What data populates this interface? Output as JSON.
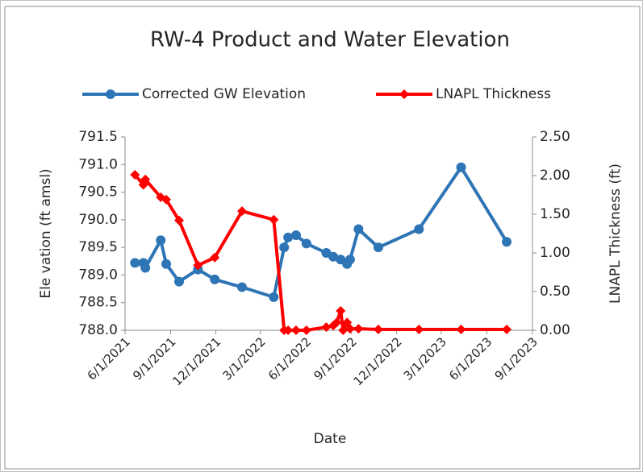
{
  "chart_data": {
    "type": "line",
    "title": "RW-4 Product and Water Elevation",
    "xlabel": "Date",
    "ylabel": "Ele vation (ft amsl)",
    "y2label": "LNAPL Thickness (ft)",
    "xlim": [
      "2021-06-01",
      "2023-09-01"
    ],
    "xticks": [
      {
        "value": "2021-06-01",
        "label": "6/1/2021"
      },
      {
        "value": "2021-09-01",
        "label": "9/1/2021"
      },
      {
        "value": "2021-12-01",
        "label": "12/1/2021"
      },
      {
        "value": "2022-03-01",
        "label": "3/1/2022"
      },
      {
        "value": "2022-06-01",
        "label": "6/1/2022"
      },
      {
        "value": "2022-09-01",
        "label": "9/1/2022"
      },
      {
        "value": "2022-12-01",
        "label": "12/1/2022"
      },
      {
        "value": "2023-03-01",
        "label": "3/1/2023"
      },
      {
        "value": "2023-06-01",
        "label": "6/1/2023"
      },
      {
        "value": "2023-09-01",
        "label": "9/1/2023"
      }
    ],
    "ylim": [
      788.0,
      791.5
    ],
    "yticks": [
      {
        "value": 788,
        "label": "788.0"
      },
      788.5,
      {
        "value": 789,
        "label": "789.0"
      },
      789.5,
      {
        "value": 790,
        "label": "790.0"
      },
      790.5,
      {
        "value": 791,
        "label": "791.0"
      },
      791.5
    ],
    "y2lim": [
      0,
      2.5
    ],
    "y2ticks": [
      {
        "value": 0,
        "label": "0.00"
      },
      {
        "value": 0.5,
        "label": "0.50"
      },
      {
        "value": 1,
        "label": "1.00"
      },
      {
        "value": 1.5,
        "label": "1.50"
      },
      {
        "value": 2,
        "label": "2.00"
      },
      {
        "value": 2.5,
        "label": "2.50"
      }
    ],
    "legend": "top",
    "series": [
      {
        "name": "Corrected GW Elevation",
        "color": "#2e75b6",
        "marker": "circle",
        "x": [
          "2021-06-21",
          "2021-07-08",
          "2021-07-12",
          "2021-08-12",
          "2021-08-23",
          "2021-09-18",
          "2021-10-26",
          "2021-11-29",
          "2022-01-23",
          "2022-03-28",
          "2022-04-18",
          "2022-04-26",
          "2022-05-12",
          "2022-06-02",
          "2022-07-12",
          "2022-07-26",
          "2022-08-10",
          "2022-08-23",
          "2022-08-29",
          "2022-09-15",
          "2022-10-25",
          "2023-01-15",
          "2023-04-10",
          "2023-07-11"
        ],
        "values": [
          789.22,
          789.22,
          789.13,
          789.63,
          789.2,
          788.88,
          789.1,
          788.92,
          788.78,
          788.6,
          789.5,
          789.68,
          789.72,
          789.57,
          789.4,
          789.33,
          789.28,
          789.2,
          789.28,
          789.83,
          789.5,
          789.83,
          790.95,
          789.6
        ]
      },
      {
        "name": "LNAPL Thickness",
        "color": "#ff0000",
        "marker": "diamond",
        "axis": "y2",
        "x": [
          "2021-06-21",
          "2021-07-08",
          "2021-07-12",
          "2021-08-12",
          "2021-08-23",
          "2021-09-18",
          "2021-10-26",
          "2021-11-29",
          "2022-01-23",
          "2022-03-28",
          "2022-04-18",
          "2022-04-26",
          "2022-05-12",
          "2022-06-02",
          "2022-07-12",
          "2022-07-26",
          "2022-08-02",
          "2022-08-10",
          "2022-08-15",
          "2022-08-23",
          "2022-08-29",
          "2022-09-15",
          "2022-10-25",
          "2023-01-15",
          "2023-04-10",
          "2023-07-11"
        ],
        "values": [
          2.01,
          1.88,
          1.95,
          1.72,
          1.69,
          1.42,
          0.84,
          0.94,
          1.54,
          1.43,
          0,
          0,
          0,
          0,
          0.04,
          0.06,
          0.1,
          0.25,
          0,
          0.1,
          0.02,
          0.02,
          0.01,
          0.01,
          0.01,
          0.01
        ]
      }
    ]
  }
}
